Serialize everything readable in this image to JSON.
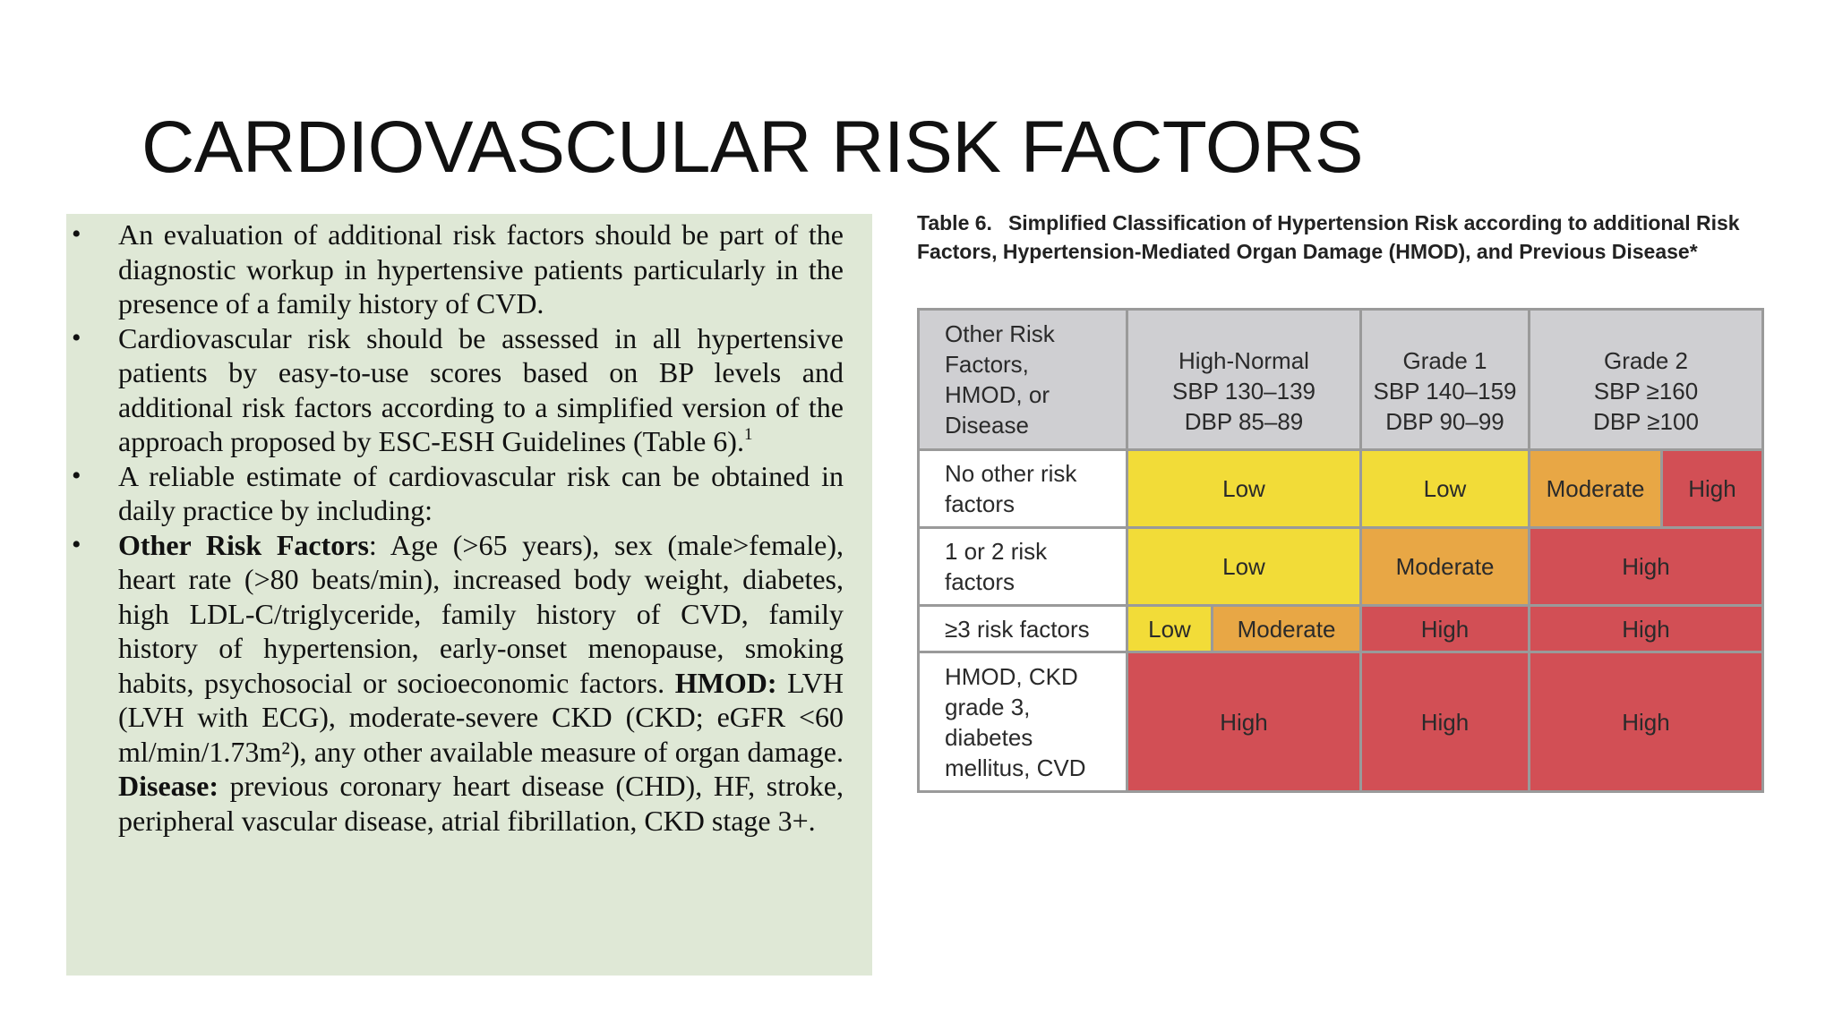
{
  "title": "CARDIOVASCULAR RISK FACTORS",
  "bullets": {
    "b1": "An evaluation of additional risk factors should be part of the diagnostic workup in hypertensive patients particularly in the presence of a family history of CVD.",
    "b2_text": "Cardiovascular risk should be assessed in all hypertensive patients by easy-to-use scores based on BP levels and additional risk factors according to a simplified version of the approach proposed by ESC-ESH Guidelines (Table 6).",
    "b2_ref": "1",
    "b3": "A reliable estimate of cardiovascular risk can be obtained in daily practice by including:",
    "b4_head1": "Other Risk Factors",
    "b4_text1": ": Age (>65 years), sex (male>female), heart rate (>80 beats/min), increased body weight, diabetes, high LDL-C/triglyceride, family history of CVD, family history of hypertension, early-onset menopause, smoking habits, psychosocial or socioeconomic factors. ",
    "b4_head2": "HMOD:",
    "b4_text2": " LVH (LVH with ECG), moderate-severe CKD (CKD; eGFR <60 ml/min/1.73m²), any other available measure of organ damage. ",
    "b4_head3": "Disease:",
    "b4_text3": " previous coronary heart disease (CHD), HF, stroke, peripheral vascular disease, atrial fibrillation, CKD stage 3+."
  },
  "table": {
    "caption_number": "Table 6.",
    "caption_text": "Simplified Classification of Hypertension Risk according to additional Risk Factors, Hypertension-Mediated Organ Damage (HMOD), and Previous Disease*",
    "header": {
      "corner": [
        "Other Risk",
        "Factors,",
        "HMOD, or",
        "Disease"
      ],
      "col1": [
        "High-Normal",
        "SBP 130–139",
        "DBP 85–89"
      ],
      "col2": [
        "Grade 1",
        "SBP 140–159",
        "DBP 90–99"
      ],
      "col3": [
        "Grade 2",
        "SBP ≥160",
        "DBP ≥100"
      ]
    },
    "rows": {
      "r1": {
        "label": [
          "No other risk",
          "factors"
        ],
        "c1": "Low",
        "c2": "Low",
        "c3a": "Moderate",
        "c3b": "High"
      },
      "r2": {
        "label": [
          "1 or 2 risk",
          "factors"
        ],
        "c1": "Low",
        "c2": "Moderate",
        "c3": "High"
      },
      "r3": {
        "label": [
          "≥3 risk factors"
        ],
        "c1a": "Low",
        "c1b": "Moderate",
        "c2": "High",
        "c3": "High"
      },
      "r4": {
        "label": [
          "HMOD, CKD",
          "grade 3,",
          "diabetes",
          "mellitus, CVD"
        ],
        "c1": "High",
        "c2": "High",
        "c3": "High"
      }
    },
    "colors": {
      "low": "#f2dc38",
      "moderate": "#e8a745",
      "high": "#d24f55",
      "header": "#cfcfd2"
    }
  }
}
